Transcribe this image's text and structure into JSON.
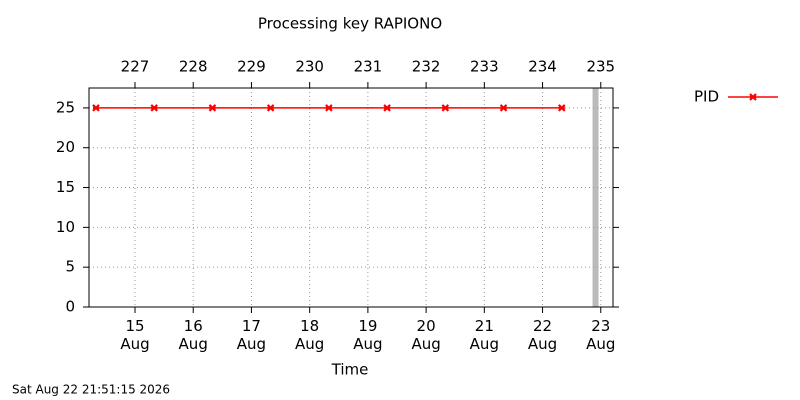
{
  "chart_data": {
    "type": "line",
    "title": "Processing key RAPIONO",
    "x_label": "Time",
    "footer": "Sat Aug 22 21:51:15 2026",
    "x": [
      226.33,
      227.33,
      228.33,
      229.33,
      230.33,
      231.33,
      232.33,
      233.33,
      234.33
    ],
    "series": [
      {
        "name": "PID",
        "color": "#ff0000",
        "values": [
          25,
          25,
          25,
          25,
          25,
          25,
          25,
          25,
          25
        ]
      }
    ],
    "xlim": [
      226.21,
      235.21
    ],
    "xticks": [
      {
        "value": 227,
        "label": "15\nAug"
      },
      {
        "value": 228,
        "label": "16\nAug"
      },
      {
        "value": 229,
        "label": "17\nAug"
      },
      {
        "value": 230,
        "label": "18\nAug"
      },
      {
        "value": 231,
        "label": "19\nAug"
      },
      {
        "value": 232,
        "label": "20\nAug"
      },
      {
        "value": 233,
        "label": "21\nAug"
      },
      {
        "value": 234,
        "label": "22\nAug"
      },
      {
        "value": 235,
        "label": "23\nAug"
      }
    ],
    "x2ticks": [
      227,
      228,
      229,
      230,
      231,
      232,
      233,
      234,
      235
    ],
    "ylim": [
      0,
      27.5
    ],
    "yticks": [
      0,
      5,
      10,
      15,
      20,
      25
    ],
    "now_marker": 234.91,
    "grid": true,
    "legend": "right"
  }
}
